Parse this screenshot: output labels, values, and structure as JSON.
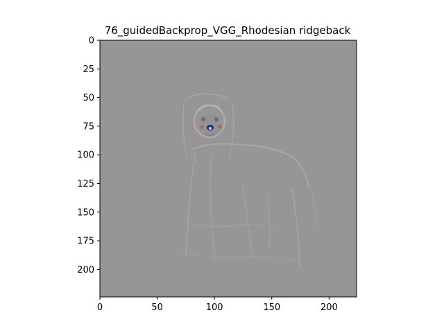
{
  "chart_data": {
    "type": "image",
    "title": "76_guidedBackprop_VGG_Rhodesian ridgeback",
    "xlabel": "",
    "ylabel": "",
    "xlim": [
      0,
      224
    ],
    "ylim": [
      224,
      0
    ],
    "xticks": [
      0,
      50,
      100,
      150,
      200
    ],
    "yticks": [
      0,
      25,
      50,
      75,
      100,
      125,
      150,
      175,
      200
    ],
    "image_background": "#969696",
    "subject": "guided backpropagation saliency map of a dog (faint edge outline, stronger detail around the head)",
    "grid": false
  }
}
